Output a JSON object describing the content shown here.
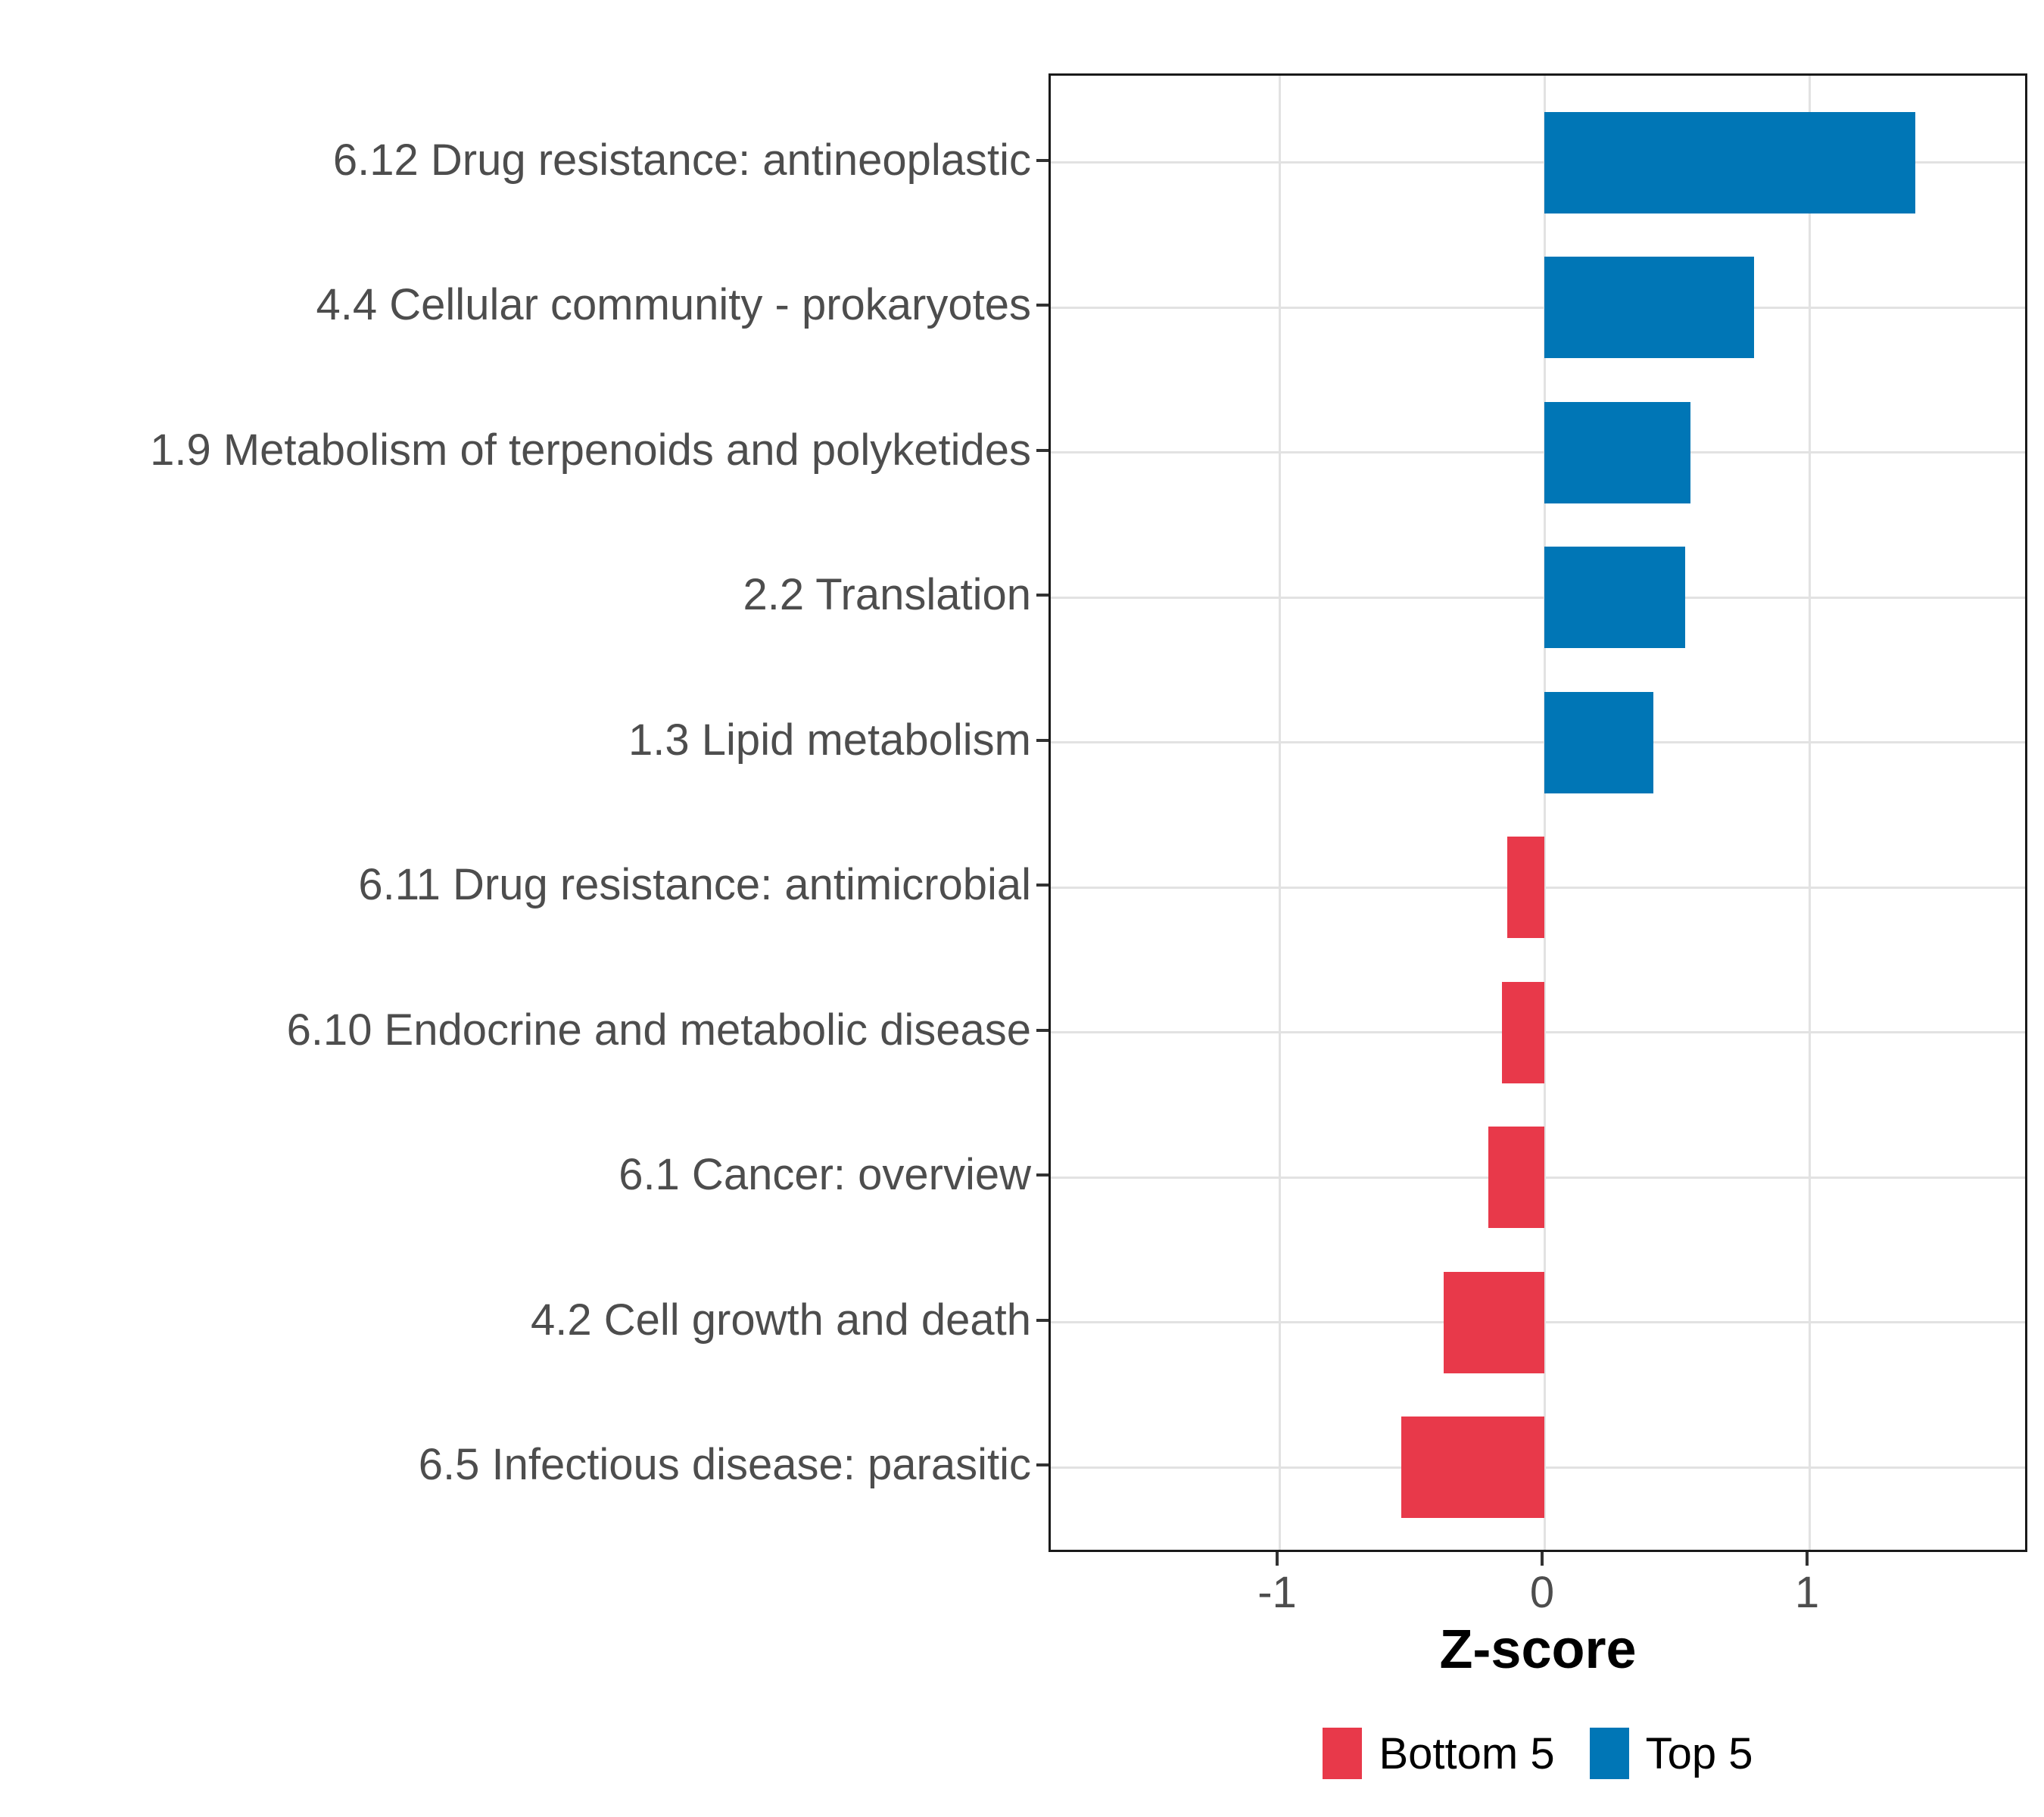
{
  "chart_data": {
    "type": "bar",
    "orientation": "horizontal",
    "title": "",
    "xlabel": "Z-score",
    "ylabel": "",
    "xlim": [
      -1.87,
      1.85
    ],
    "x_ticks": [
      -1,
      0,
      1
    ],
    "x_tick_labels": [
      "-1",
      "0",
      "1"
    ],
    "grid": "major",
    "legend_position": "bottom",
    "bar_width_fraction": 0.7,
    "categories": [
      "6.12 Drug resistance: antineoplastic",
      "4.4 Cellular community - prokaryotes",
      "1.9 Metabolism of terpenoids and polyketides",
      "2.2 Translation",
      "1.3 Lipid metabolism",
      "6.11 Drug resistance: antimicrobial",
      "6.10 Endocrine and metabolic disease",
      "6.1 Cancer: overview",
      "4.2 Cell growth and death",
      "6.5 Infectious disease: parasitic"
    ],
    "values": [
      1.4,
      0.79,
      0.55,
      0.53,
      0.41,
      -0.14,
      -0.16,
      -0.21,
      -0.38,
      -0.54
    ],
    "groups": [
      "Top 5",
      "Top 5",
      "Top 5",
      "Top 5",
      "Top 5",
      "Bottom 5",
      "Bottom 5",
      "Bottom 5",
      "Bottom 5",
      "Bottom 5"
    ],
    "series": [
      {
        "name": "Bottom 5",
        "color": "#e8394a"
      },
      {
        "name": "Top 5",
        "color": "#0076b6"
      }
    ],
    "legend": [
      {
        "label": "Bottom 5",
        "color": "#e8394a"
      },
      {
        "label": "Top 5",
        "color": "#0076b6"
      }
    ]
  },
  "colors": {
    "top5_blue": "#0076b6",
    "bottom5_red": "#e8394a",
    "gridline": "#e2e2e2",
    "panel_border": "#1a1a1a",
    "axis_text": "#4d4d4d",
    "title_text": "#000000"
  }
}
